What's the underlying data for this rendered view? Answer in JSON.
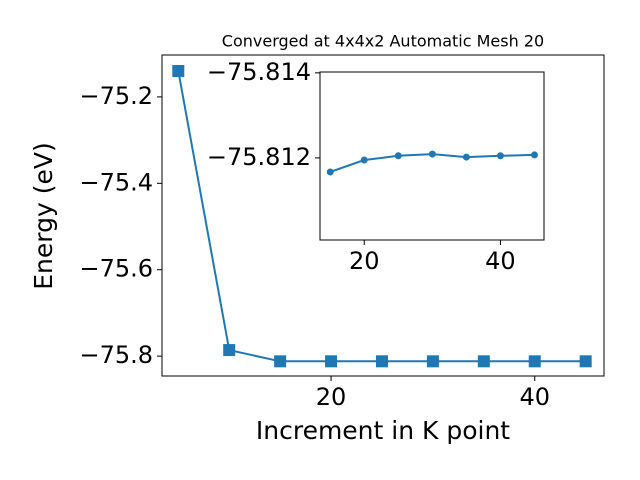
{
  "chart_data": [
    {
      "type": "line",
      "title": "Converged at 4x4x2 Automatic Mesh 20",
      "xlabel": "Increment in K point",
      "ylabel": "Energy (eV)",
      "x": [
        5,
        10,
        15,
        20,
        25,
        30,
        35,
        40,
        45
      ],
      "series": [
        {
          "color": "#1f77b4",
          "marker": "square",
          "values": [
            -75.14,
            -75.786,
            -75.812,
            -75.812,
            -75.812,
            -75.812,
            -75.812,
            -75.812,
            -75.812
          ]
        }
      ],
      "xlim": [
        3.4,
        46.8
      ],
      "ylim": [
        -75.846,
        -75.103
      ],
      "xticks": [
        20,
        40
      ],
      "yticks": [
        {
          "value": -75.8,
          "label": "−75.8"
        },
        {
          "value": -75.6,
          "label": "−75.6"
        },
        {
          "value": -75.4,
          "label": "−75.4"
        },
        {
          "value": -75.2,
          "label": "−75.2"
        }
      ]
    },
    {
      "type": "line",
      "x": [
        15,
        20,
        25,
        30,
        35,
        40,
        45
      ],
      "series": [
        {
          "color": "#1f77b4",
          "marker": "circle",
          "values": [
            -75.81167,
            -75.81195,
            -75.81205,
            -75.81209,
            -75.81202,
            -75.81205,
            -75.81207
          ]
        }
      ],
      "xlim": [
        13.5,
        46.4
      ],
      "ylim": [
        -75.81007,
        -75.81402
      ],
      "xticks": [
        20,
        40
      ],
      "yticks": [
        {
          "value": -75.812,
          "label": "−75.812"
        },
        {
          "value": -75.814,
          "label": "−75.814"
        }
      ]
    }
  ]
}
